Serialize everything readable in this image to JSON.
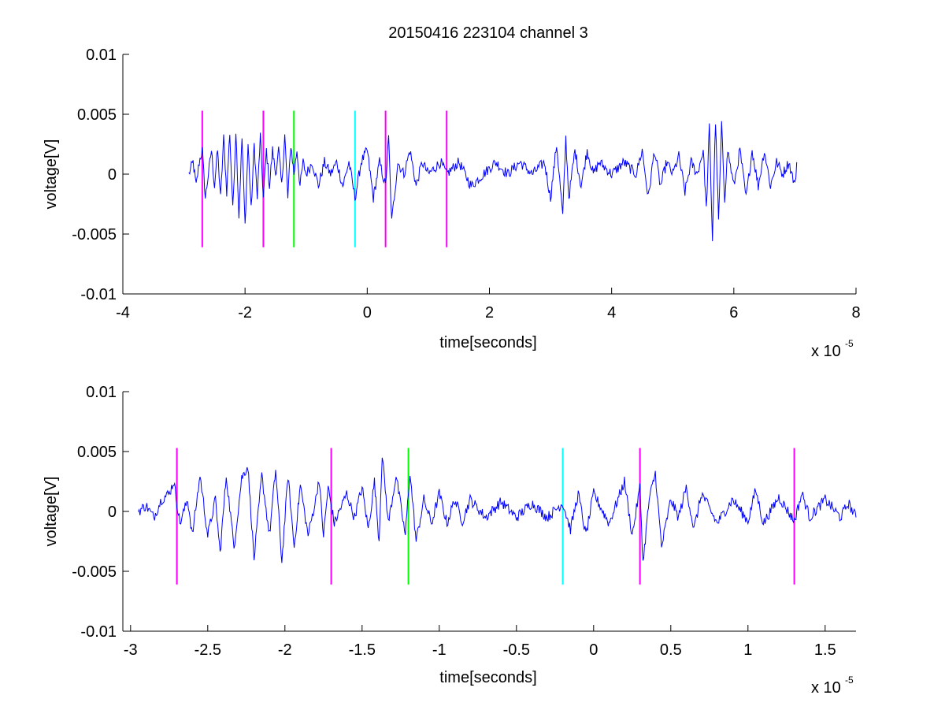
{
  "colors": {
    "trace": "#0000ff",
    "magenta": "#ff00ff",
    "green": "#00ff00",
    "cyan": "#00ffff",
    "axis": "#000000",
    "background": "#ffffff"
  },
  "chart_data": [
    {
      "type": "line",
      "title": "20150416 223104 channel 3",
      "xlabel": "time[seconds]",
      "ylabel": "voltage[V]",
      "x_exponent_label": "x 10",
      "x_exponent_power": "-5",
      "xlim": [
        -4,
        8
      ],
      "ylim": [
        -0.01,
        0.01
      ],
      "x_ticks": [
        -4,
        -2,
        0,
        2,
        4,
        6,
        8
      ],
      "x_tick_labels": [
        "-4",
        "-2",
        "0",
        "2",
        "4",
        "6",
        "8"
      ],
      "y_ticks": [
        0.01,
        0.005,
        0,
        -0.005,
        -0.01
      ],
      "y_tick_labels": [
        "0.01",
        "0.005",
        "0",
        "-0.005",
        "-0.01"
      ],
      "grid": false,
      "series": [
        {
          "x_range": [
            -2.92,
            7.03
          ],
          "points": [
            [
              -2.92,
              0.0
            ],
            [
              -2.85,
              0.001
            ],
            [
              -2.8,
              -0.001
            ],
            [
              -2.75,
              0.001
            ],
            [
              -2.7,
              0.002
            ],
            [
              -2.65,
              -0.002
            ],
            [
              -2.6,
              0.0
            ],
            [
              -2.55,
              0.002
            ],
            [
              -2.5,
              -0.001
            ],
            [
              -2.45,
              0.002
            ],
            [
              -2.4,
              -0.002
            ],
            [
              -2.35,
              0.003
            ],
            [
              -2.3,
              -0.0015
            ],
            [
              -2.25,
              0.0035
            ],
            [
              -2.2,
              -0.003
            ],
            [
              -2.15,
              0.0037
            ],
            [
              -2.1,
              -0.0035
            ],
            [
              -2.05,
              0.003
            ],
            [
              -2.0,
              -0.0043
            ],
            [
              -1.95,
              0.0025
            ],
            [
              -1.9,
              -0.003
            ],
            [
              -1.85,
              0.0025
            ],
            [
              -1.8,
              -0.002
            ],
            [
              -1.75,
              0.0032
            ],
            [
              -1.7,
              -0.002
            ],
            [
              -1.65,
              0.002
            ],
            [
              -1.6,
              -0.001
            ],
            [
              -1.55,
              0.002
            ],
            [
              -1.5,
              0.0
            ],
            [
              -1.45,
              0.002
            ],
            [
              -1.4,
              -0.001
            ],
            [
              -1.35,
              0.0033
            ],
            [
              -1.3,
              -0.002
            ],
            [
              -1.25,
              0.0025
            ],
            [
              -1.2,
              0.0
            ],
            [
              -1.15,
              0.002
            ],
            [
              -1.1,
              -0.001
            ],
            [
              -1.05,
              0.001
            ],
            [
              -1.0,
              0.0
            ],
            [
              -0.9,
              0.001
            ],
            [
              -0.8,
              -0.001
            ],
            [
              -0.7,
              0.001
            ],
            [
              -0.6,
              0.0
            ],
            [
              -0.5,
              0.001
            ],
            [
              -0.4,
              -0.001
            ],
            [
              -0.3,
              0.001
            ],
            [
              -0.2,
              -0.002
            ],
            [
              -0.1,
              0.001
            ],
            [
              0.0,
              0.002
            ],
            [
              0.1,
              -0.002
            ],
            [
              0.2,
              0.001
            ],
            [
              0.3,
              -0.001
            ],
            [
              0.35,
              0.003
            ],
            [
              0.4,
              -0.004
            ],
            [
              0.5,
              0.001
            ],
            [
              0.6,
              0.0
            ],
            [
              0.7,
              0.002
            ],
            [
              0.8,
              -0.001
            ],
            [
              0.9,
              0.001
            ],
            [
              1.0,
              0.0
            ],
            [
              1.2,
              0.001
            ],
            [
              1.3,
              0.0
            ],
            [
              1.5,
              0.001
            ],
            [
              1.7,
              -0.001
            ],
            [
              1.9,
              0.0
            ],
            [
              2.1,
              0.001
            ],
            [
              2.3,
              0.0
            ],
            [
              2.5,
              0.001
            ],
            [
              2.7,
              0.0
            ],
            [
              2.9,
              0.001
            ],
            [
              3.0,
              -0.002
            ],
            [
              3.1,
              0.0025
            ],
            [
              3.2,
              -0.0035
            ],
            [
              3.25,
              0.003
            ],
            [
              3.3,
              -0.002
            ],
            [
              3.4,
              0.002
            ],
            [
              3.5,
              -0.001
            ],
            [
              3.6,
              0.002
            ],
            [
              3.7,
              0.0
            ],
            [
              3.8,
              0.001
            ],
            [
              4.0,
              0.0
            ],
            [
              4.2,
              0.001
            ],
            [
              4.4,
              0.0
            ],
            [
              4.5,
              0.002
            ],
            [
              4.6,
              -0.002
            ],
            [
              4.7,
              0.002
            ],
            [
              4.8,
              -0.001
            ],
            [
              4.9,
              0.001
            ],
            [
              5.0,
              0.0
            ],
            [
              5.1,
              0.0015
            ],
            [
              5.2,
              -0.0015
            ],
            [
              5.3,
              0.001
            ],
            [
              5.4,
              0.0
            ],
            [
              5.5,
              0.002
            ],
            [
              5.55,
              -0.003
            ],
            [
              5.6,
              0.004
            ],
            [
              5.65,
              -0.0055
            ],
            [
              5.7,
              0.0045
            ],
            [
              5.75,
              -0.004
            ],
            [
              5.8,
              0.004
            ],
            [
              5.85,
              -0.002
            ],
            [
              5.9,
              0.002
            ],
            [
              6.0,
              -0.001
            ],
            [
              6.1,
              0.002
            ],
            [
              6.2,
              -0.002
            ],
            [
              6.3,
              0.002
            ],
            [
              6.4,
              -0.001
            ],
            [
              6.5,
              0.002
            ],
            [
              6.6,
              -0.001
            ],
            [
              6.7,
              0.001
            ],
            [
              6.8,
              0.0
            ],
            [
              6.9,
              0.001
            ],
            [
              7.0,
              -0.001
            ],
            [
              7.03,
              0.001
            ]
          ]
        }
      ],
      "markers": [
        {
          "x": -2.7,
          "y_range": [
            -0.0061,
            0.0053
          ],
          "color": "magenta"
        },
        {
          "x": -1.7,
          "y_range": [
            -0.0061,
            0.0053
          ],
          "color": "magenta"
        },
        {
          "x": -1.2,
          "y_range": [
            -0.0061,
            0.0053
          ],
          "color": "green"
        },
        {
          "x": -0.2,
          "y_range": [
            -0.0061,
            0.0053
          ],
          "color": "cyan"
        },
        {
          "x": 0.3,
          "y_range": [
            -0.0061,
            0.0053
          ],
          "color": "magenta"
        },
        {
          "x": 1.3,
          "y_range": [
            -0.0061,
            0.0053
          ],
          "color": "magenta"
        }
      ]
    },
    {
      "type": "line",
      "title": "",
      "xlabel": "time[seconds]",
      "ylabel": "voltage[V]",
      "x_exponent_label": "x 10",
      "x_exponent_power": "-5",
      "xlim": [
        -3.05,
        1.7
      ],
      "ylim": [
        -0.01,
        0.01
      ],
      "x_ticks": [
        -3,
        -2.5,
        -2,
        -1.5,
        -1,
        -0.5,
        0,
        0.5,
        1,
        1.5
      ],
      "x_tick_labels": [
        "-3",
        "-2.5",
        "-2",
        "-1.5",
        "-1",
        "-0.5",
        "0",
        "0.5",
        "1",
        "1.5"
      ],
      "y_ticks": [
        0.01,
        0.005,
        0,
        -0.005,
        -0.01
      ],
      "y_tick_labels": [
        "0.01",
        "0.005",
        "0",
        "-0.005",
        "-0.01"
      ],
      "grid": false,
      "series": [
        {
          "x_range": [
            -2.95,
            1.7
          ],
          "points": [
            [
              -2.95,
              0.0
            ],
            [
              -2.9,
              0.0005
            ],
            [
              -2.85,
              -0.0005
            ],
            [
              -2.8,
              0.001
            ],
            [
              -2.75,
              0.0015
            ],
            [
              -2.72,
              0.0025
            ],
            [
              -2.68,
              -0.001
            ],
            [
              -2.63,
              0.001
            ],
            [
              -2.6,
              -0.002
            ],
            [
              -2.55,
              0.003
            ],
            [
              -2.5,
              -0.002
            ],
            [
              -2.45,
              0.001
            ],
            [
              -2.42,
              -0.0035
            ],
            [
              -2.38,
              0.003
            ],
            [
              -2.33,
              -0.003
            ],
            [
              -2.28,
              0.0028
            ],
            [
              -2.24,
              0.0038
            ],
            [
              -2.2,
              -0.004
            ],
            [
              -2.15,
              0.003
            ],
            [
              -2.1,
              -0.002
            ],
            [
              -2.06,
              0.0035
            ],
            [
              -2.02,
              -0.0042
            ],
            [
              -1.98,
              0.003
            ],
            [
              -1.94,
              -0.003
            ],
            [
              -1.9,
              0.0022
            ],
            [
              -1.85,
              -0.002
            ],
            [
              -1.8,
              0.001
            ],
            [
              -1.78,
              0.0028
            ],
            [
              -1.75,
              -0.002
            ],
            [
              -1.72,
              0.002
            ],
            [
              -1.68,
              -0.001
            ],
            [
              -1.6,
              0.0015
            ],
            [
              -1.55,
              -0.0005
            ],
            [
              -1.5,
              0.002
            ],
            [
              -1.46,
              -0.0015
            ],
            [
              -1.42,
              0.0025
            ],
            [
              -1.39,
              -0.0025
            ],
            [
              -1.37,
              0.0048
            ],
            [
              -1.33,
              -0.001
            ],
            [
              -1.28,
              0.003
            ],
            [
              -1.22,
              -0.002
            ],
            [
              -1.19,
              0.0033
            ],
            [
              -1.15,
              -0.0025
            ],
            [
              -1.1,
              0.001
            ],
            [
              -1.05,
              -0.001
            ],
            [
              -1.0,
              0.0015
            ],
            [
              -0.95,
              -0.001
            ],
            [
              -0.9,
              0.001
            ],
            [
              -0.85,
              -0.0008
            ],
            [
              -0.8,
              0.001
            ],
            [
              -0.7,
              -0.0005
            ],
            [
              -0.6,
              0.0008
            ],
            [
              -0.5,
              -0.0005
            ],
            [
              -0.4,
              0.0007
            ],
            [
              -0.3,
              -0.0005
            ],
            [
              -0.2,
              0.0007
            ],
            [
              -0.15,
              -0.0015
            ],
            [
              -0.1,
              0.0015
            ],
            [
              -0.05,
              -0.002
            ],
            [
              0.0,
              0.0015
            ],
            [
              0.1,
              -0.001
            ],
            [
              0.2,
              0.0025
            ],
            [
              0.25,
              -0.002
            ],
            [
              0.3,
              0.002
            ],
            [
              0.32,
              -0.0043
            ],
            [
              0.36,
              0.001
            ],
            [
              0.4,
              0.0032
            ],
            [
              0.44,
              -0.003
            ],
            [
              0.5,
              0.001
            ],
            [
              0.55,
              -0.0005
            ],
            [
              0.6,
              0.002
            ],
            [
              0.65,
              -0.0015
            ],
            [
              0.7,
              0.0015
            ],
            [
              0.8,
              -0.001
            ],
            [
              0.9,
              0.001
            ],
            [
              1.0,
              -0.0008
            ],
            [
              1.05,
              0.0018
            ],
            [
              1.1,
              -0.001
            ],
            [
              1.2,
              0.0012
            ],
            [
              1.3,
              -0.0008
            ],
            [
              1.35,
              0.0015
            ],
            [
              1.4,
              -0.0005
            ],
            [
              1.5,
              0.001
            ],
            [
              1.6,
              -0.0005
            ],
            [
              1.65,
              0.0007
            ],
            [
              1.7,
              -0.0005
            ]
          ]
        }
      ],
      "markers": [
        {
          "x": -2.7,
          "y_range": [
            -0.0061,
            0.0053
          ],
          "color": "magenta"
        },
        {
          "x": -1.7,
          "y_range": [
            -0.0061,
            0.0053
          ],
          "color": "magenta"
        },
        {
          "x": -1.2,
          "y_range": [
            -0.0061,
            0.0053
          ],
          "color": "green"
        },
        {
          "x": -0.2,
          "y_range": [
            -0.0061,
            0.0053
          ],
          "color": "cyan"
        },
        {
          "x": 0.3,
          "y_range": [
            -0.0061,
            0.0053
          ],
          "color": "magenta"
        },
        {
          "x": 1.3,
          "y_range": [
            -0.0061,
            0.0053
          ],
          "color": "magenta"
        }
      ]
    }
  ]
}
